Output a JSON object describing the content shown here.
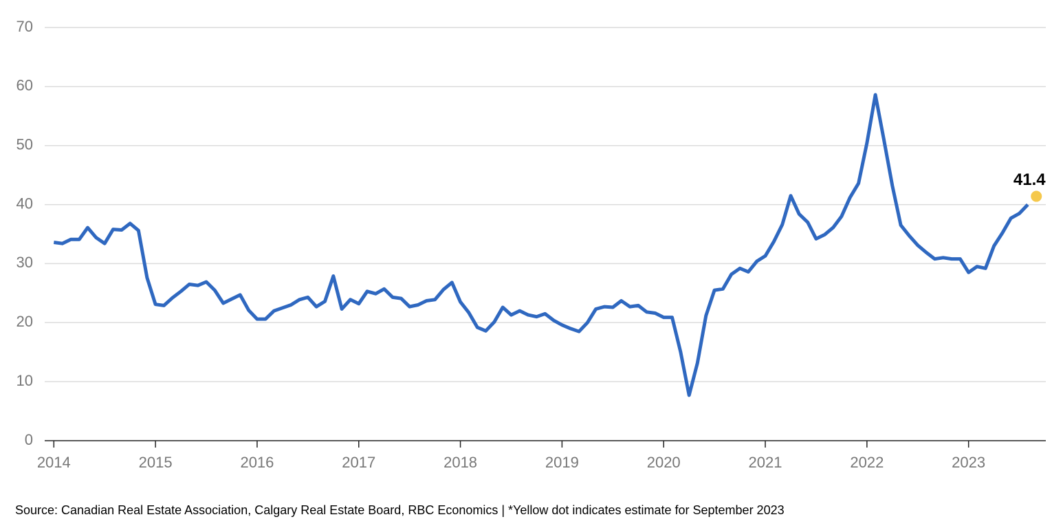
{
  "chart_data": {
    "type": "line",
    "x": [
      2014,
      2014.083,
      2014.167,
      2014.25,
      2014.333,
      2014.417,
      2014.5,
      2014.583,
      2014.667,
      2014.75,
      2014.833,
      2014.917,
      2015,
      2015.083,
      2015.167,
      2015.25,
      2015.333,
      2015.417,
      2015.5,
      2015.583,
      2015.667,
      2015.75,
      2015.833,
      2015.917,
      2016,
      2016.083,
      2016.167,
      2016.25,
      2016.333,
      2016.417,
      2016.5,
      2016.583,
      2016.667,
      2016.75,
      2016.833,
      2016.917,
      2017,
      2017.083,
      2017.167,
      2017.25,
      2017.333,
      2017.417,
      2017.5,
      2017.583,
      2017.667,
      2017.75,
      2017.833,
      2017.917,
      2018,
      2018.083,
      2018.167,
      2018.25,
      2018.333,
      2018.417,
      2018.5,
      2018.583,
      2018.667,
      2018.75,
      2018.833,
      2018.917,
      2019,
      2019.083,
      2019.167,
      2019.25,
      2019.333,
      2019.417,
      2019.5,
      2019.583,
      2019.667,
      2019.75,
      2019.833,
      2019.917,
      2020,
      2020.083,
      2020.167,
      2020.25,
      2020.333,
      2020.417,
      2020.5,
      2020.583,
      2020.667,
      2020.75,
      2020.833,
      2020.917,
      2021,
      2021.083,
      2021.167,
      2021.25,
      2021.333,
      2021.417,
      2021.5,
      2021.583,
      2021.667,
      2021.75,
      2021.833,
      2021.917,
      2022,
      2022.083,
      2022.167,
      2022.25,
      2022.333,
      2022.417,
      2022.5,
      2022.583,
      2022.667,
      2022.75,
      2022.833,
      2022.917,
      2023,
      2023.083,
      2023.167,
      2023.25,
      2023.333,
      2023.417,
      2023.5,
      2023.583
    ],
    "values": [
      33.6,
      33.4,
      34.1,
      34.1,
      36.1,
      34.4,
      33.4,
      35.8,
      35.7,
      36.8,
      35.6,
      27.6,
      23.1,
      22.9,
      24.2,
      25.3,
      26.5,
      26.3,
      26.9,
      25.5,
      23.3,
      24.0,
      24.7,
      22.1,
      20.6,
      20.6,
      22.0,
      22.5,
      23.0,
      23.9,
      24.3,
      22.7,
      23.6,
      27.9,
      22.3,
      23.9,
      23.2,
      25.3,
      24.9,
      25.7,
      24.3,
      24.1,
      22.7,
      23.0,
      23.7,
      23.9,
      25.6,
      26.8,
      23.5,
      21.7,
      19.2,
      18.6,
      20.1,
      22.6,
      21.3,
      22.0,
      21.3,
      21.0,
      21.5,
      20.4,
      19.6,
      19.0,
      18.5,
      20.0,
      22.3,
      22.7,
      22.6,
      23.7,
      22.7,
      22.9,
      21.8,
      21.6,
      20.9,
      20.9,
      15.0,
      7.7,
      13.2,
      21.2,
      25.5,
      25.7,
      28.2,
      29.2,
      28.6,
      30.4,
      31.3,
      33.7,
      36.6,
      41.5,
      38.4,
      37.0,
      34.2,
      34.9,
      36.1,
      38.0,
      41.2,
      43.6,
      50.4,
      58.6,
      51.0,
      43.2,
      36.5,
      34.7,
      33.1,
      31.9,
      30.8,
      31.0,
      30.8,
      30.8,
      28.5,
      29.5,
      29.2,
      33.0,
      35.2,
      37.7,
      38.5,
      40.0
    ],
    "color": "#2f68c0",
    "estimate": {
      "x": 2023.667,
      "value": 41.4,
      "color": "#f5c84c"
    },
    "xlim": [
      2013.91,
      2023.76
    ],
    "xticks": [
      2014,
      2015,
      2016,
      2017,
      2018,
      2019,
      2020,
      2021,
      2022,
      2023
    ],
    "ylim": [
      0,
      70
    ],
    "yticks": [
      0,
      10,
      20,
      30,
      40,
      50,
      60,
      70
    ],
    "grid": true,
    "note": "Source: Canadian Real Estate Association, Calgary Real Estate Board, RBC Economics | *Yellow dot indicates estimate for September 2023"
  }
}
